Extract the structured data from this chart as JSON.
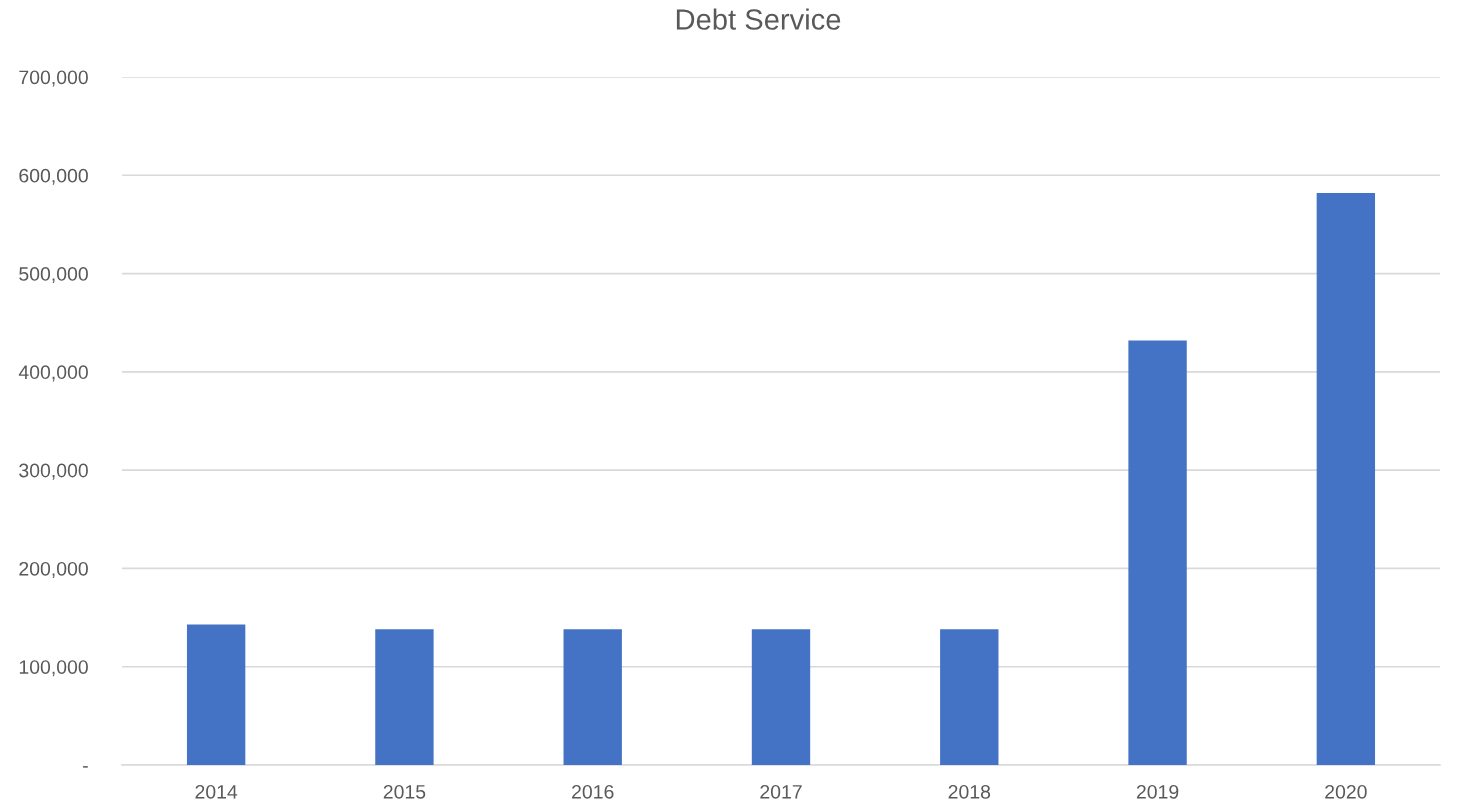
{
  "chart_data": {
    "type": "bar",
    "title": "Debt Service",
    "categories": [
      "2014",
      "2015",
      "2016",
      "2017",
      "2018",
      "2019",
      "2020"
    ],
    "values": [
      143000,
      138000,
      138000,
      138000,
      138000,
      432000,
      582000
    ],
    "color": "#4472c4",
    "ylim": [
      0,
      700000
    ],
    "yticks": [
      {
        "value": 0,
        "label": "-"
      },
      {
        "value": 100000,
        "label": "100,000"
      },
      {
        "value": 200000,
        "label": "200,000"
      },
      {
        "value": 300000,
        "label": "300,000"
      },
      {
        "value": 400000,
        "label": "400,000"
      },
      {
        "value": 500000,
        "label": "500,000"
      },
      {
        "value": 600000,
        "label": "600,000"
      },
      {
        "value": 700000,
        "label": "700,000"
      }
    ],
    "grid": "y"
  }
}
